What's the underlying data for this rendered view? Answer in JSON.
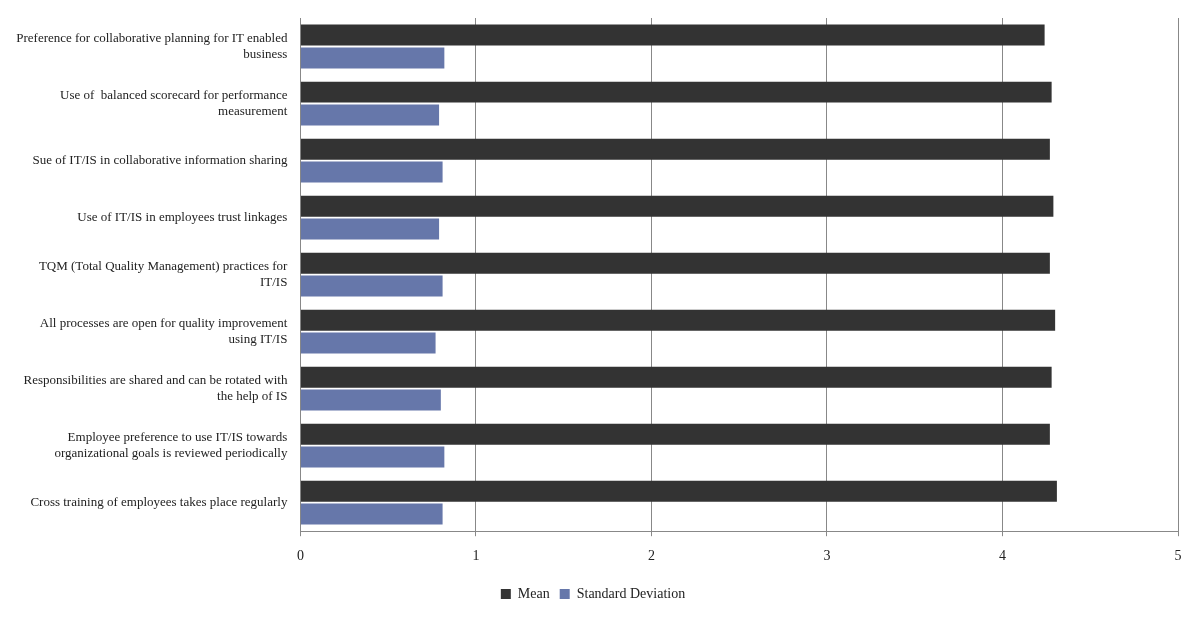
{
  "chart_data": {
    "type": "bar",
    "orientation": "horizontal",
    "categories": [
      "Preference for collaborative planning for IT enabled business",
      "Use of  balanced scorecard for performance measurement",
      "Sue of IT/IS in collaborative information sharing",
      "Use of IT/IS in employees trust linkages",
      "TQM (Total Quality Management) practices for IT/IS",
      "All processes are open for quality improvement using IT/IS",
      "Responsibilities are shared and can be rotated with the help of IS",
      "Employee preference to use IT/IS towards organizational goals is reviewed periodically",
      "Cross training of employees takes place regularly"
    ],
    "series": [
      {
        "name": "Mean",
        "color": "#333333",
        "values": [
          4.24,
          4.28,
          4.27,
          4.29,
          4.27,
          4.3,
          4.28,
          4.27,
          4.31
        ]
      },
      {
        "name": "Standard Deviation",
        "color": "#6677aa",
        "values": [
          0.82,
          0.79,
          0.81,
          0.79,
          0.81,
          0.77,
          0.8,
          0.82,
          0.81
        ]
      }
    ],
    "xlim": [
      0,
      5
    ],
    "xticks": [
      0,
      1,
      2,
      3,
      4,
      5
    ],
    "grid": "x",
    "legend": "bottom"
  }
}
